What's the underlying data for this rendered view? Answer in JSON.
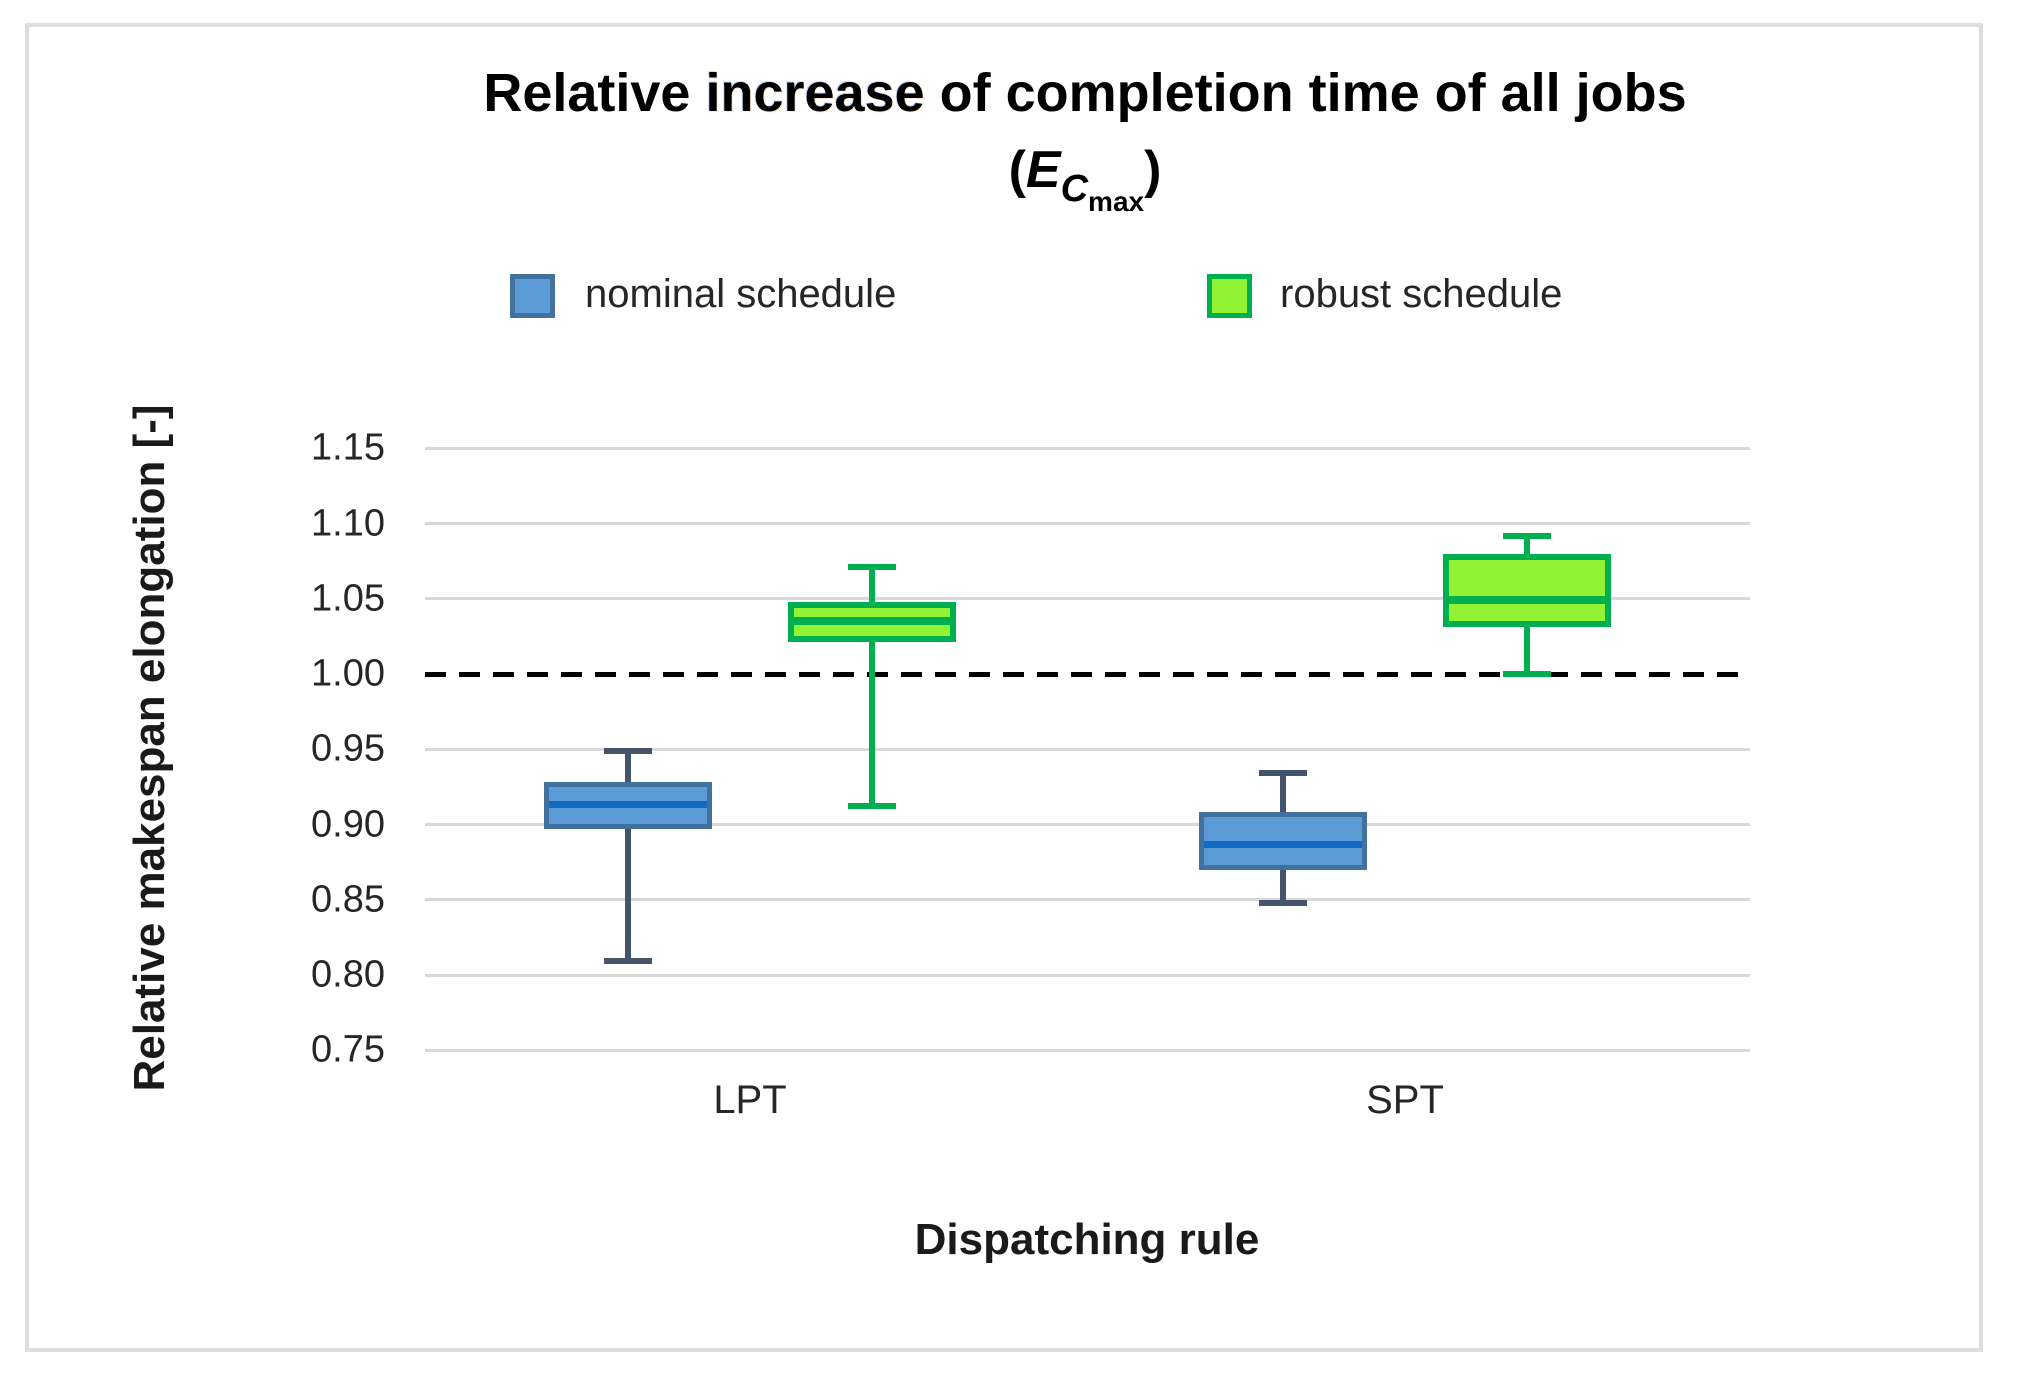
{
  "figure": {
    "title_parts": {
      "pre": "Relative ",
      "edited_word": "increase",
      "post": " of completion time of all jobs"
    },
    "subtitle_parts": {
      "open": "(",
      "e": "E",
      "c": "C",
      "max": "max",
      "close": ")"
    }
  },
  "legend": {
    "nominal_label": "nominal schedule",
    "robust_label": "robust schedule"
  },
  "colors": {
    "nominal_fill": "#5B9BD5",
    "nominal_border": "#41719C",
    "nominal_median": "#1169C2",
    "nominal_whisker": "#44546A",
    "robust_fill": "#92F335",
    "robust_border": "#00B050",
    "robust_median": "#00B050",
    "robust_whisker": "#00B050",
    "gridline": "#D9D9D9",
    "reference_line": "#000000",
    "text": "#262626"
  },
  "chart_data": {
    "type": "boxplot",
    "title": "Relative increase of completion time of all jobs (E_Cmax)",
    "xlabel": "Dispatching rule",
    "ylabel": "Relative makespan elongation [-]",
    "ylim": [
      0.75,
      1.15
    ],
    "yticks": [
      {
        "value": 0.75,
        "label": "0.75"
      },
      {
        "value": 0.8,
        "label": "0.80"
      },
      {
        "value": 0.85,
        "label": "0.85"
      },
      {
        "value": 0.9,
        "label": "0.90"
      },
      {
        "value": 0.95,
        "label": "0.95"
      },
      {
        "value": 1.0,
        "label": "1.00"
      },
      {
        "value": 1.05,
        "label": "1.05"
      },
      {
        "value": 1.1,
        "label": "1.10"
      },
      {
        "value": 1.15,
        "label": "1.15"
      }
    ],
    "reference_line_value": 1.0,
    "grid": true,
    "legend_position": "top",
    "categories": [
      "LPT",
      "SPT"
    ],
    "series": [
      {
        "name": "nominal schedule",
        "key": "nominal",
        "boxes": [
          {
            "category": "LPT",
            "whisker_low": 0.809,
            "q1": 0.897,
            "median": 0.913,
            "q3": 0.928,
            "whisker_high": 0.949
          },
          {
            "category": "SPT",
            "whisker_low": 0.848,
            "q1": 0.87,
            "median": 0.887,
            "q3": 0.908,
            "whisker_high": 0.934
          }
        ]
      },
      {
        "name": "robust schedule",
        "key": "robust",
        "boxes": [
          {
            "category": "LPT",
            "whisker_low": 0.912,
            "q1": 1.021,
            "median": 1.035,
            "q3": 1.048,
            "whisker_high": 1.071
          },
          {
            "category": "SPT",
            "whisker_low": 1.0,
            "q1": 1.031,
            "median": 1.049,
            "q3": 1.08,
            "whisker_high": 1.092
          }
        ]
      }
    ]
  }
}
